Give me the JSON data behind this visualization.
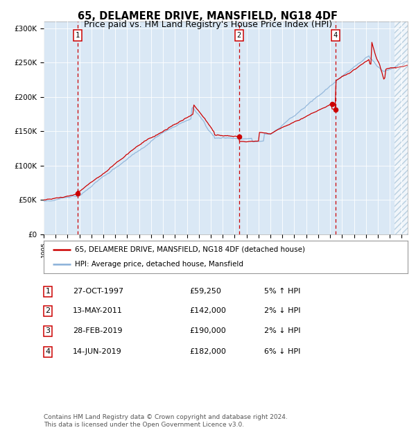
{
  "title": "65, DELAMERE DRIVE, MANSFIELD, NG18 4DF",
  "subtitle": "Price paid vs. HM Land Registry's House Price Index (HPI)",
  "title_fontsize": 10.5,
  "subtitle_fontsize": 9,
  "bg_color": "#dae8f5",
  "ylim": [
    0,
    310000
  ],
  "yticks": [
    0,
    50000,
    100000,
    150000,
    200000,
    250000,
    300000
  ],
  "ytick_labels": [
    "£0",
    "£50K",
    "£100K",
    "£150K",
    "£200K",
    "£250K",
    "£300K"
  ],
  "year_start": 1995,
  "year_end": 2025,
  "sale_year_floats": [
    1997.83,
    2011.37,
    2019.16,
    2019.45
  ],
  "sale_prices": [
    59250,
    142000,
    190000,
    182000
  ],
  "sale_labels": [
    "1",
    "2",
    "3",
    "4"
  ],
  "vline_display_indices": [
    0,
    1,
    3
  ],
  "vline_display_labels": [
    "1",
    "2",
    "4"
  ],
  "red_line_color": "#cc0000",
  "blue_line_color": "#88b0d8",
  "dot_color": "#cc0000",
  "vline_color": "#cc0000",
  "legend_label_red": "65, DELAMERE DRIVE, MANSFIELD, NG18 4DF (detached house)",
  "legend_label_blue": "HPI: Average price, detached house, Mansfield",
  "table_rows": [
    [
      "1",
      "27-OCT-1997",
      "£59,250",
      "5% ↑ HPI"
    ],
    [
      "2",
      "13-MAY-2011",
      "£142,000",
      "2% ↓ HPI"
    ],
    [
      "3",
      "28-FEB-2019",
      "£190,000",
      "2% ↓ HPI"
    ],
    [
      "4",
      "14-JUN-2019",
      "£182,000",
      "6% ↓ HPI"
    ]
  ],
  "footer_text": "Contains HM Land Registry data © Crown copyright and database right 2024.\nThis data is licensed under the Open Government Licence v3.0."
}
